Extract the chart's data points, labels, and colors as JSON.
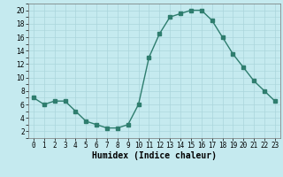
{
  "x": [
    0,
    1,
    2,
    3,
    4,
    5,
    6,
    7,
    8,
    9,
    10,
    11,
    12,
    13,
    14,
    15,
    16,
    17,
    18,
    19,
    20,
    21,
    22,
    23
  ],
  "y": [
    7,
    6,
    6.5,
    6.5,
    5,
    3.5,
    3,
    2.5,
    2.5,
    3,
    6,
    13,
    16.5,
    19,
    19.5,
    20,
    20,
    18.5,
    16,
    13.5,
    11.5,
    9.5,
    8,
    6.5
  ],
  "line_color": "#2e7d6e",
  "marker": "s",
  "marker_size": 2.5,
  "bg_color": "#c5eaef",
  "grid_color": "#aad5db",
  "xlabel": "Humidex (Indice chaleur)",
  "xlim": [
    -0.5,
    23.5
  ],
  "ylim": [
    1,
    21
  ],
  "yticks": [
    2,
    4,
    6,
    8,
    10,
    12,
    14,
    16,
    18,
    20
  ],
  "xticks": [
    0,
    1,
    2,
    3,
    4,
    5,
    6,
    7,
    8,
    9,
    10,
    11,
    12,
    13,
    14,
    15,
    16,
    17,
    18,
    19,
    20,
    21,
    22,
    23
  ],
  "xtick_labels": [
    "0",
    "1",
    "2",
    "3",
    "4",
    "5",
    "6",
    "7",
    "8",
    "9",
    "10",
    "11",
    "12",
    "13",
    "14",
    "15",
    "16",
    "17",
    "18",
    "19",
    "20",
    "21",
    "22",
    "23"
  ],
  "tick_fontsize": 5.5,
  "xlabel_fontsize": 7,
  "linewidth": 1.0
}
